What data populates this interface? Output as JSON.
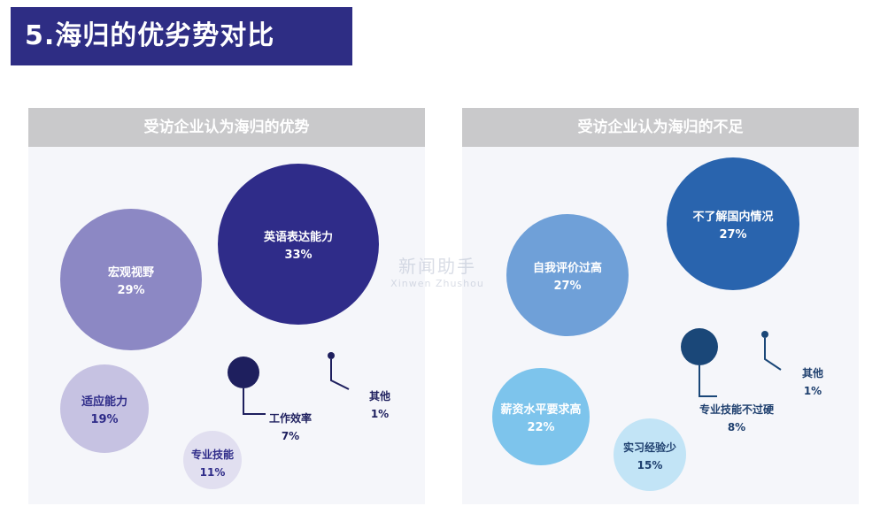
{
  "header": {
    "title": "5.海归的优劣势对比",
    "background": "#2e2d84"
  },
  "panel_background": "#f5f6fa",
  "panel_header_background": "#c9c9cb",
  "watermark": {
    "line1": "新闻助手",
    "line2": "Xinwen Zhushou"
  },
  "chart_data": [
    {
      "type": "bubble",
      "title": "受访企业认为海归的优势",
      "series": [
        {
          "label": "英语表达能力",
          "value": "33%",
          "pct": 33,
          "color": "#2f2c89",
          "text_color": "#ffffff"
        },
        {
          "label": "宏观视野",
          "value": "29%",
          "pct": 29,
          "color": "#8c88c4",
          "text_color": "#ffffff"
        },
        {
          "label": "适应能力",
          "value": "19%",
          "pct": 19,
          "color": "#c6c2e2",
          "text_color": "#2f2c89"
        },
        {
          "label": "专业技能",
          "value": "11%",
          "pct": 11,
          "color": "#e1dff0",
          "text_color": "#2f2c89"
        },
        {
          "label": "工作效率",
          "value": "7%",
          "pct": 7,
          "color": "#1e1f5e",
          "text_color": "#1e1f5e"
        },
        {
          "label": "其他",
          "value": "1%",
          "pct": 1,
          "color": "#1e1f5e",
          "text_color": "#1e1f5e"
        }
      ]
    },
    {
      "type": "bubble",
      "title": "受访企业认为海归的不足",
      "series": [
        {
          "label": "不了解国内情况",
          "value": "27%",
          "pct": 27,
          "color": "#2964ae",
          "text_color": "#ffffff"
        },
        {
          "label": "自我评价过高",
          "value": "27%",
          "pct": 27,
          "color": "#6fa0d8",
          "text_color": "#ffffff"
        },
        {
          "label": "薪资水平要求高",
          "value": "22%",
          "pct": 22,
          "color": "#7dc4ec",
          "text_color": "#ffffff"
        },
        {
          "label": "实习经验少",
          "value": "15%",
          "pct": 15,
          "color": "#c2e4f6",
          "text_color": "#1e3f6e"
        },
        {
          "label": "专业技能不过硬",
          "value": "8%",
          "pct": 8,
          "color": "#1a4778",
          "text_color": "#1e3f6e"
        },
        {
          "label": "其他",
          "value": "1%",
          "pct": 1,
          "color": "#1a4778",
          "text_color": "#1e3f6e"
        }
      ]
    }
  ]
}
